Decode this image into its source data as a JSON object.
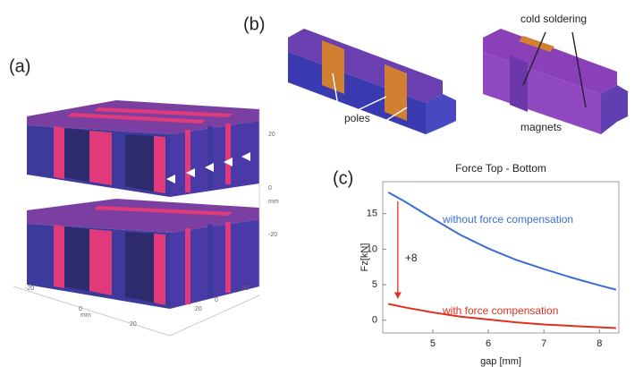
{
  "panels": {
    "a": {
      "label": "(a)",
      "axis_labels": [
        "20",
        "0",
        "mm",
        "-20",
        "-20",
        "0",
        "mm",
        "20",
        "20",
        "0",
        "-20"
      ]
    },
    "b": {
      "label": "(b)",
      "annotations": [
        "poles",
        "cold soldering",
        "magnets"
      ]
    },
    "c": {
      "label": "(c)"
    }
  },
  "chart_data": {
    "type": "line",
    "title": "Force Top - Bottom",
    "x_label": "gap [mm]",
    "y_label": "Fz[kN]",
    "x": [
      4.2,
      4.5,
      5,
      5.5,
      6,
      6.5,
      7,
      7.5,
      8,
      8.3
    ],
    "series": [
      {
        "name": "without force compensation",
        "color": "#3a6fd0",
        "values": [
          18,
          16.7,
          14.3,
          12,
          10.1,
          8.5,
          7.2,
          6,
          4.9,
          4.3
        ]
      },
      {
        "name": "with force compensation",
        "color": "#e0301e",
        "values": [
          2.3,
          1.8,
          1.1,
          0.5,
          0.1,
          -0.3,
          -0.6,
          -0.8,
          -1.0,
          -1.1
        ]
      }
    ],
    "annotation": "+8",
    "xlim": [
      4.1,
      8.35
    ],
    "ylim": [
      -1.8,
      19.5
    ],
    "xticks": [
      5,
      6,
      7,
      8
    ],
    "yticks": [
      0,
      5,
      10,
      15
    ]
  }
}
